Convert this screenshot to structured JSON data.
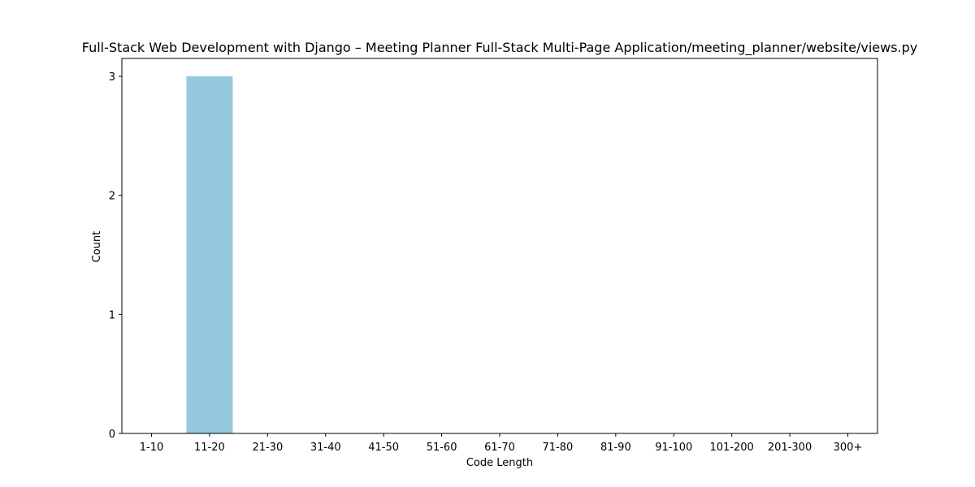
{
  "chart_data": {
    "type": "bar",
    "title": "Full-Stack Web Development with Django – Meeting Planner Full-Stack Multi-Page Application/meeting_planner/website/views.py",
    "xlabel": "Code Length",
    "ylabel": "Count",
    "categories": [
      "1-10",
      "11-20",
      "21-30",
      "31-40",
      "41-50",
      "51-60",
      "61-70",
      "71-80",
      "81-90",
      "91-100",
      "101-200",
      "201-300",
      "300+"
    ],
    "values": [
      0,
      3,
      0,
      0,
      0,
      0,
      0,
      0,
      0,
      0,
      0,
      0,
      0
    ],
    "ylim": [
      0,
      3.15
    ],
    "yticks": [
      0,
      1,
      2,
      3
    ],
    "bar_color": "#96c9de",
    "grid": false,
    "legend": "none"
  }
}
